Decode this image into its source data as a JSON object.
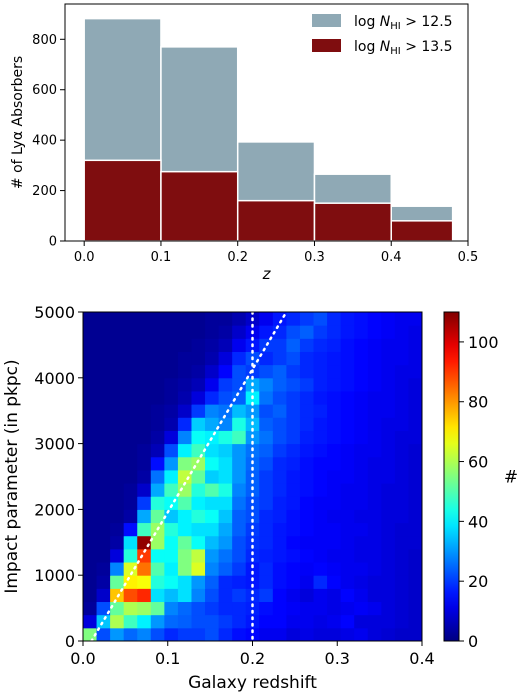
{
  "chart_data": [
    {
      "type": "bar",
      "x_bin_edges": [
        0.0,
        0.1,
        0.2,
        0.3,
        0.4,
        0.48
      ],
      "series": [
        {
          "name": "log N_HI > 12.5",
          "legend_label": "log N",
          "legend_sub": "HI",
          "legend_rest": " > 12.5",
          "color": "#8fa9b5",
          "values": [
            882,
            770,
            393,
            265,
            138
          ]
        },
        {
          "name": "log N_HI > 13.5",
          "legend_label": "log N",
          "legend_sub": "HI",
          "legend_rest": " > 13.5",
          "color": "#7f0d0f",
          "values": [
            320,
            275,
            160,
            150,
            80
          ]
        }
      ],
      "xlabel": "z",
      "ylabel": "# of Lyα Absorbers",
      "xlim": [
        -0.025,
        0.5
      ],
      "ylim": [
        0,
        940
      ],
      "xticks": [
        "0.0",
        "0.1",
        "0.2",
        "0.3",
        "0.4",
        "0.5"
      ],
      "xtick_values": [
        0.0,
        0.1,
        0.2,
        0.3,
        0.4,
        0.5
      ],
      "yticks": [
        "0",
        "200",
        "400",
        "600",
        "800"
      ],
      "ytick_values": [
        0,
        200,
        400,
        600,
        800
      ],
      "legend_position": "top-right"
    },
    {
      "type": "heatmap",
      "xlabel": "Galaxy redshift",
      "ylabel": "Impact parameter (in pkpc)",
      "xlim": [
        0.0,
        0.4
      ],
      "ylim": [
        0,
        5000
      ],
      "xticks": [
        "0.0",
        "0.1",
        "0.2",
        "0.3",
        "0.4"
      ],
      "xtick_values": [
        0.0,
        0.1,
        0.2,
        0.3,
        0.4
      ],
      "yticks": [
        "0",
        "1000",
        "2000",
        "3000",
        "4000",
        "5000"
      ],
      "ytick_values": [
        0,
        1000,
        2000,
        3000,
        4000,
        5000
      ],
      "colorbar_label": "#",
      "colorbar_range": [
        0,
        110
      ],
      "colorbar_ticks": [
        "0",
        "20",
        "40",
        "60",
        "80",
        "100"
      ],
      "colorbar_tick_values": [
        0,
        20,
        40,
        60,
        80,
        100
      ],
      "colormap": "jet",
      "dotted_line_x": 0.2,
      "dotted_diagonal": [
        [
          0.01,
          0
        ],
        [
          0.24,
          5000
        ]
      ],
      "grid_x_edges": [
        0.0,
        0.016,
        0.032,
        0.048,
        0.064,
        0.08,
        0.096,
        0.112,
        0.128,
        0.144,
        0.16,
        0.176,
        0.192,
        0.208,
        0.224,
        0.24,
        0.256,
        0.272,
        0.288,
        0.304,
        0.32,
        0.336,
        0.352,
        0.368,
        0.384,
        0.4
      ],
      "grid_y_edges": [
        0,
        200,
        400,
        600,
        800,
        1000,
        1200,
        1400,
        1600,
        1800,
        2000,
        2200,
        2400,
        2600,
        2800,
        3000,
        3200,
        3400,
        3600,
        3800,
        4000,
        4200,
        4400,
        4600,
        4800,
        5000
      ],
      "counts_rows_bottom_to_top": [
        [
          55,
          22,
          30,
          25,
          28,
          22,
          18,
          20,
          20,
          22,
          18,
          15,
          14,
          12,
          12,
          10,
          11,
          10,
          10,
          11,
          12,
          10,
          9,
          8,
          8
        ],
        [
          10,
          35,
          60,
          48,
          40,
          30,
          25,
          24,
          22,
          22,
          20,
          18,
          16,
          14,
          14,
          12,
          12,
          11,
          12,
          14,
          10,
          10,
          10,
          9,
          8
        ],
        [
          3,
          22,
          52,
          60,
          58,
          52,
          28,
          25,
          22,
          20,
          18,
          18,
          17,
          15,
          14,
          13,
          12,
          12,
          11,
          12,
          13,
          12,
          10,
          9,
          8
        ],
        [
          2,
          8,
          75,
          88,
          92,
          38,
          34,
          38,
          28,
          22,
          18,
          20,
          18,
          20,
          14,
          12,
          10,
          12,
          11,
          14,
          12,
          10,
          10,
          9,
          8
        ],
        [
          2,
          4,
          52,
          70,
          68,
          45,
          42,
          38,
          30,
          24,
          18,
          17,
          16,
          18,
          15,
          14,
          12,
          18,
          14,
          12,
          11,
          10,
          10,
          9,
          8
        ],
        [
          2,
          3,
          28,
          65,
          84,
          50,
          40,
          55,
          65,
          28,
          24,
          20,
          16,
          18,
          15,
          14,
          13,
          14,
          13,
          12,
          12,
          11,
          10,
          9,
          8
        ],
        [
          2,
          2,
          10,
          45,
          90,
          42,
          42,
          55,
          62,
          30,
          26,
          22,
          18,
          17,
          16,
          15,
          14,
          13,
          12,
          12,
          11,
          11,
          10,
          9,
          8
        ],
        [
          2,
          2,
          4,
          38,
          108,
          58,
          42,
          52,
          42,
          34,
          30,
          22,
          19,
          18,
          16,
          14,
          13,
          13,
          13,
          12,
          11,
          11,
          10,
          9,
          9
        ],
        [
          2,
          2,
          3,
          15,
          48,
          58,
          45,
          40,
          38,
          38,
          32,
          24,
          20,
          18,
          16,
          15,
          14,
          13,
          13,
          12,
          12,
          11,
          10,
          9,
          9
        ],
        [
          2,
          2,
          2,
          4,
          32,
          52,
          35,
          40,
          45,
          42,
          35,
          24,
          22,
          18,
          17,
          15,
          14,
          13,
          12,
          12,
          11,
          11,
          10,
          10,
          9
        ],
        [
          2,
          2,
          2,
          3,
          20,
          45,
          42,
          50,
          40,
          38,
          38,
          26,
          22,
          20,
          17,
          16,
          14,
          13,
          13,
          12,
          12,
          11,
          10,
          10,
          9
        ],
        [
          2,
          2,
          2,
          3,
          8,
          32,
          48,
          58,
          45,
          50,
          44,
          28,
          24,
          20,
          18,
          16,
          15,
          14,
          13,
          12,
          12,
          11,
          10,
          10,
          9
        ],
        [
          2,
          2,
          2,
          2,
          4,
          26,
          40,
          62,
          52,
          36,
          38,
          30,
          24,
          20,
          18,
          16,
          15,
          14,
          13,
          13,
          12,
          11,
          11,
          10,
          9
        ],
        [
          2,
          2,
          2,
          2,
          3,
          15,
          30,
          55,
          58,
          42,
          38,
          30,
          25,
          22,
          18,
          17,
          15,
          14,
          14,
          13,
          12,
          11,
          11,
          10,
          9
        ],
        [
          2,
          2,
          2,
          2,
          3,
          6,
          22,
          40,
          48,
          38,
          36,
          30,
          26,
          24,
          20,
          18,
          16,
          15,
          14,
          13,
          12,
          12,
          11,
          10,
          9
        ],
        [
          2,
          2,
          2,
          2,
          2,
          4,
          10,
          28,
          42,
          40,
          44,
          48,
          30,
          26,
          22,
          20,
          17,
          16,
          15,
          14,
          13,
          12,
          11,
          10,
          10
        ],
        [
          2,
          2,
          2,
          2,
          2,
          3,
          5,
          18,
          36,
          32,
          28,
          44,
          34,
          24,
          22,
          20,
          18,
          16,
          15,
          14,
          13,
          12,
          11,
          11,
          10
        ],
        [
          2,
          2,
          2,
          2,
          2,
          3,
          4,
          8,
          20,
          28,
          26,
          34,
          30,
          22,
          24,
          20,
          18,
          17,
          15,
          14,
          13,
          12,
          12,
          11,
          10
        ],
        [
          2,
          2,
          2,
          2,
          2,
          2,
          3,
          5,
          10,
          18,
          22,
          24,
          40,
          26,
          22,
          20,
          18,
          16,
          15,
          14,
          13,
          12,
          12,
          11,
          10
        ],
        [
          2,
          2,
          2,
          2,
          2,
          2,
          3,
          4,
          6,
          12,
          20,
          22,
          32,
          28,
          24,
          22,
          20,
          17,
          16,
          15,
          14,
          13,
          12,
          11,
          10
        ],
        [
          2,
          2,
          2,
          2,
          2,
          2,
          2,
          3,
          4,
          8,
          14,
          22,
          20,
          22,
          24,
          20,
          18,
          17,
          16,
          15,
          14,
          13,
          12,
          11,
          11
        ],
        [
          2,
          2,
          2,
          2,
          2,
          2,
          2,
          3,
          3,
          5,
          10,
          18,
          22,
          18,
          20,
          22,
          18,
          17,
          16,
          15,
          14,
          13,
          12,
          12,
          11
        ],
        [
          2,
          2,
          2,
          2,
          2,
          2,
          2,
          2,
          3,
          4,
          6,
          12,
          16,
          20,
          20,
          24,
          20,
          18,
          17,
          15,
          14,
          13,
          12,
          12,
          11
        ],
        [
          2,
          2,
          2,
          2,
          2,
          2,
          2,
          2,
          2,
          3,
          4,
          8,
          12,
          16,
          18,
          22,
          24,
          20,
          18,
          16,
          15,
          14,
          13,
          12,
          11
        ],
        [
          2,
          2,
          2,
          2,
          2,
          2,
          2,
          2,
          2,
          3,
          3,
          5,
          8,
          12,
          16,
          18,
          20,
          22,
          18,
          16,
          15,
          14,
          13,
          12,
          12
        ]
      ]
    }
  ]
}
